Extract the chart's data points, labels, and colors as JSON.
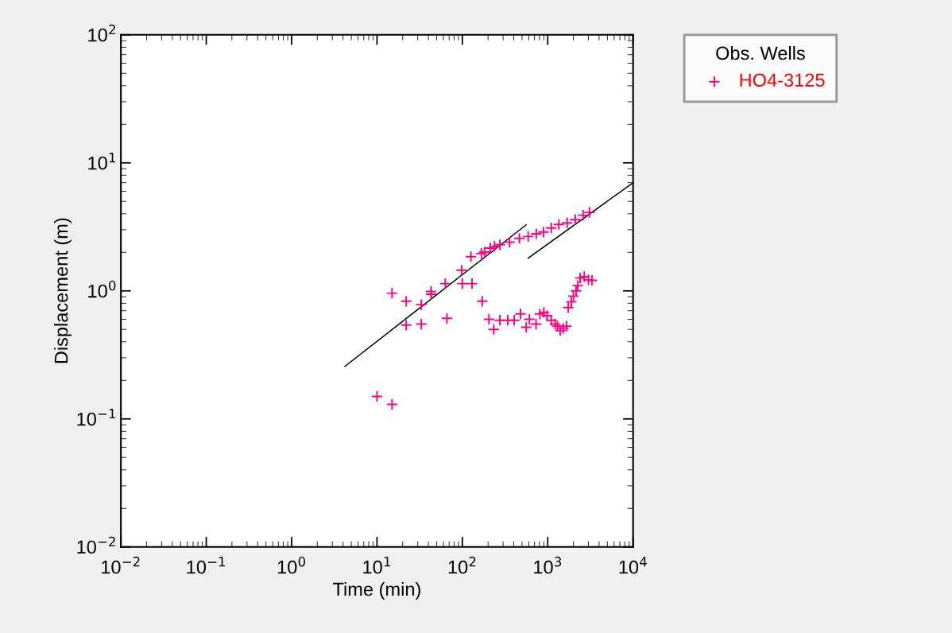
{
  "chart_data": {
    "type": "scatter",
    "xlabel": "Time (min)",
    "ylabel": "Displacement (m)",
    "legend_title": "Obs. Wells",
    "log": "xy",
    "grid": false,
    "legend": "top right",
    "xlim": [
      0.01,
      10000
    ],
    "ylim": [
      0.01,
      100
    ],
    "xticks": [
      {
        "value": 0.01,
        "label": "10$^{−2}$"
      },
      {
        "value": 0.1,
        "label": "10$^{−1}$"
      },
      {
        "value": 1,
        "label": "10$^{0}$"
      },
      {
        "value": 10,
        "label": "10$^{1}$"
      },
      {
        "value": 100,
        "label": "10$^{2}$"
      },
      {
        "value": 1000,
        "label": "10$^{3}$"
      },
      {
        "value": 10000,
        "label": "10$^{4}$"
      }
    ],
    "yticks": [
      {
        "value": 0.01,
        "label": "10$^{−2}$"
      },
      {
        "value": 0.1,
        "label": "10$^{−1}$"
      },
      {
        "value": 1,
        "label": "10$^{0}$"
      },
      {
        "value": 10,
        "label": "10$^{1}$"
      },
      {
        "value": 100,
        "label": "10$^{2}$"
      }
    ],
    "series": [
      {
        "name": "HO4-3125",
        "color": "#ff0080",
        "marker": "cross",
        "x": [
          10,
          15,
          15,
          22,
          22,
          33,
          33,
          43,
          43,
          63,
          66,
          98,
          100,
          130,
          126,
          167,
          171,
          182,
          205,
          213,
          233,
          238,
          275,
          275,
          340,
          357,
          405,
          465,
          480,
          560,
          590,
          610,
          730,
          735,
          810,
          890,
          900,
          980,
          1100,
          1100,
          1220,
          1300,
          1350,
          1400,
          1520,
          1660,
          1690,
          1740,
          1890,
          2000,
          2100,
          2150,
          2250,
          2400,
          2600,
          2680,
          3000,
          3080,
          3300
        ],
        "values": [
          0.15,
          0.13,
          0.96,
          0.83,
          0.54,
          0.55,
          0.78,
          0.99,
          0.94,
          1.14,
          0.61,
          1.45,
          1.14,
          1.14,
          1.85,
          1.96,
          0.83,
          2.01,
          0.6,
          2.16,
          0.5,
          2.23,
          2.29,
          0.59,
          0.59,
          2.4,
          0.59,
          2.57,
          0.66,
          0.52,
          2.66,
          0.6,
          0.55,
          2.79,
          0.66,
          2.88,
          0.68,
          0.64,
          3.1,
          0.59,
          0.55,
          0.53,
          3.3,
          0.49,
          0.51,
          0.53,
          3.4,
          0.74,
          0.82,
          0.91,
          3.6,
          1.0,
          1.1,
          1.26,
          3.9,
          1.29,
          1.22,
          4.1,
          1.21
        ]
      },
      {
        "color": "#000000",
        "type": "line",
        "marker": "none",
        "x": [
          4.2,
          560
        ],
        "values": [
          0.257,
          3.28
        ]
      },
      {
        "color": "#000000",
        "type": "line",
        "marker": "none",
        "x": [
          590,
          10000
        ],
        "values": [
          1.8,
          7
        ]
      }
    ]
  }
}
